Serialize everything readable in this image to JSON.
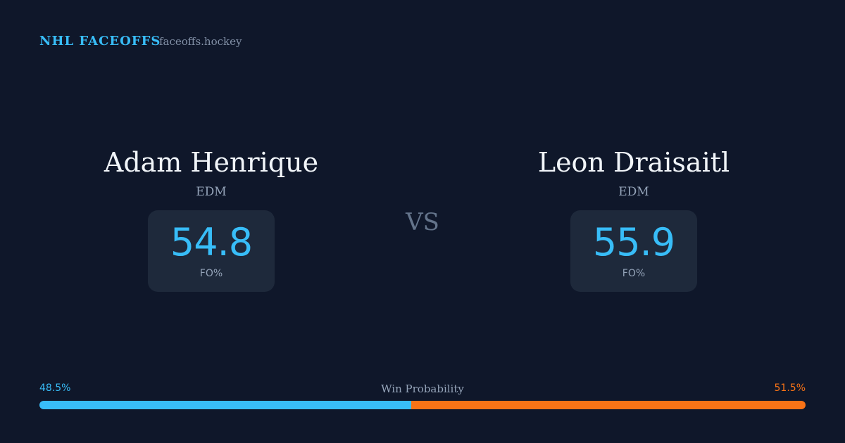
{
  "header": {
    "brand": "NHL FACEOFFS",
    "site": "faceoffs.hockey"
  },
  "players": [
    {
      "name": "Adam Henrique",
      "team": "EDM",
      "stat": {
        "value": 54.8,
        "label": "FO%"
      }
    },
    {
      "name": "Leon Draisaitl",
      "team": "EDM",
      "stat": {
        "value": 55.9,
        "label": "FO%"
      }
    }
  ],
  "vs": "VS",
  "win_probability": {
    "title": "Win Probability",
    "left": {
      "value": 48.5,
      "label": "48.5%",
      "color": "#38bdf8"
    },
    "right": {
      "value": 51.5,
      "label": "51.5%",
      "color": "#f97316"
    }
  }
}
